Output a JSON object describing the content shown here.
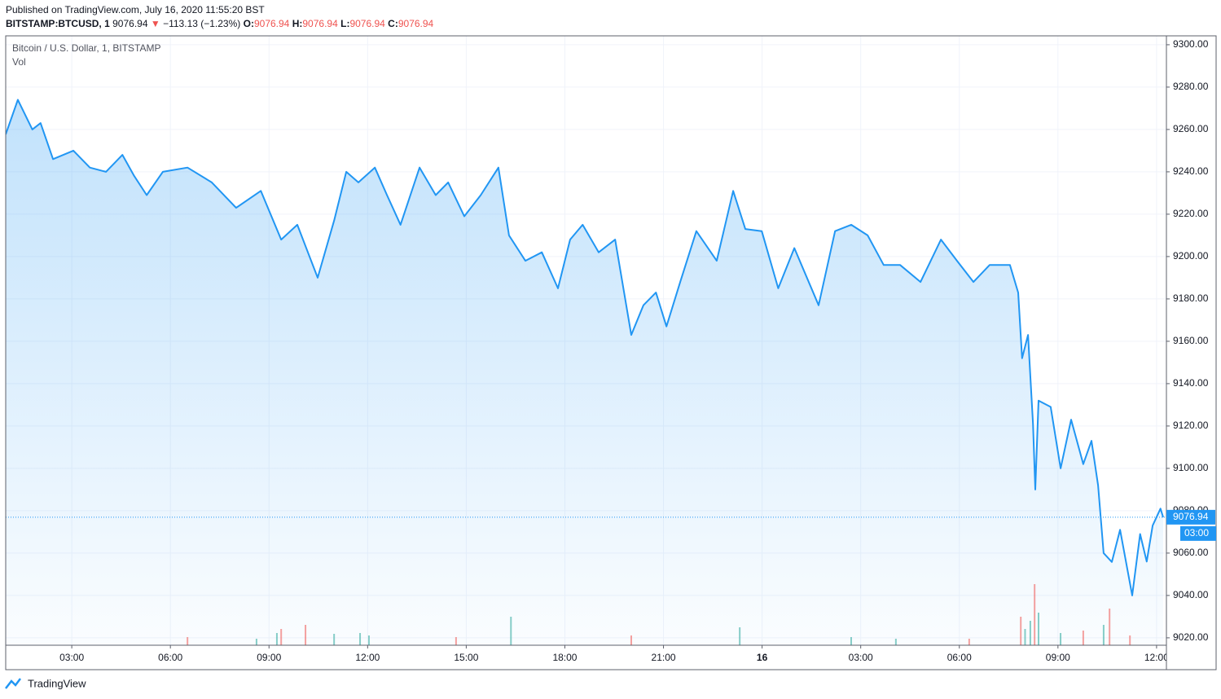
{
  "published": "Published on TradingView.com, July 16, 2020 11:55:20 BST",
  "symbol": "BITSTAMP:BTCUSD, 1",
  "change": "−113.13 (−1.23%)",
  "ohlc": {
    "open_label": "O:",
    "open": 9076.94,
    "high_label": "H:",
    "high": 9076.94,
    "low_label": "L:",
    "low": 9076.94,
    "close_label": "C:",
    "close": 9076.94
  },
  "footer": "TradingView",
  "chart_data": {
    "type": "area-line",
    "title": "Bitcoin / U.S. Dollar, 1, BITSTAMP",
    "volume_label": "Vol",
    "last": 9076.94,
    "countdown": "03:00",
    "color": "#2196f3",
    "grid": true,
    "xlim": [
      0.99,
      36.3
    ],
    "xticks": [
      {
        "value": 3,
        "label": "03:00"
      },
      {
        "value": 6,
        "label": "06:00"
      },
      {
        "value": 9,
        "label": "09:00"
      },
      {
        "value": 12,
        "label": "12:00"
      },
      {
        "value": 15,
        "label": "15:00"
      },
      {
        "value": 18,
        "label": "18:00"
      },
      {
        "value": 21,
        "label": "21:00"
      },
      {
        "value": 24,
        "label": "16"
      },
      {
        "value": 27,
        "label": "03:00"
      },
      {
        "value": 30,
        "label": "06:00"
      },
      {
        "value": 33,
        "label": "09:00"
      },
      {
        "value": 36,
        "label": "12:00"
      }
    ],
    "ylim": [
      9016.5,
      9304.2
    ],
    "yticks": [
      {
        "value": 9020,
        "label": "9020.00"
      },
      {
        "value": 9040,
        "label": "9040.00"
      },
      {
        "value": 9060,
        "label": "9060.00"
      },
      {
        "value": 9080,
        "label": "9080.00"
      },
      {
        "value": 9100,
        "label": "9100.00"
      },
      {
        "value": 9120,
        "label": "9120.00"
      },
      {
        "value": 9140,
        "label": "9140.00"
      },
      {
        "value": 9160,
        "label": "9160.00"
      },
      {
        "value": 9180,
        "label": "9180.00"
      },
      {
        "value": 9200,
        "label": "9200.00"
      },
      {
        "value": 9220,
        "label": "9220.00"
      },
      {
        "value": 9240,
        "label": "9240.00"
      },
      {
        "value": 9260,
        "label": "9260.00"
      },
      {
        "value": 9280,
        "label": "9280.00"
      },
      {
        "value": 9300,
        "label": "9300.00"
      }
    ],
    "x": [
      0.99,
      1.36,
      1.8,
      2.05,
      2.43,
      3.05,
      3.55,
      4.04,
      4.54,
      4.9,
      5.28,
      5.77,
      6.52,
      7.26,
      8.0,
      8.75,
      9.37,
      9.86,
      10.48,
      10.98,
      11.35,
      11.72,
      12.22,
      12.59,
      13.0,
      13.58,
      14.07,
      14.45,
      14.94,
      15.44,
      15.98,
      16.3,
      16.8,
      17.3,
      17.79,
      18.16,
      18.54,
      19.03,
      19.53,
      20.02,
      20.39,
      20.77,
      21.09,
      21.51,
      22.0,
      22.62,
      23.12,
      23.49,
      23.99,
      24.49,
      24.98,
      25.72,
      26.22,
      26.71,
      27.21,
      27.7,
      28.2,
      28.82,
      29.44,
      29.93,
      30.43,
      30.92,
      31.54,
      31.79,
      31.91,
      32.09,
      32.24,
      32.31,
      32.41,
      32.78,
      33.08,
      33.4,
      33.77,
      34.02,
      34.22,
      34.39,
      34.64,
      34.89,
      35.26,
      35.5,
      35.7,
      35.88,
      36.12,
      36.2
    ],
    "values": [
      9257.7,
      9274,
      9260,
      9263,
      9246,
      9250,
      9242,
      9240,
      9248,
      9238,
      9229,
      9240,
      9242,
      9235,
      9223,
      9231,
      9208,
      9215,
      9190,
      9217,
      9240,
      9235,
      9242,
      9229,
      9215,
      9242,
      9229,
      9235,
      9219,
      9229,
      9242,
      9210,
      9198,
      9202,
      9185,
      9208,
      9215,
      9202,
      9208,
      9163,
      9177,
      9183,
      9167,
      9188,
      9212,
      9198,
      9231,
      9213,
      9212,
      9185,
      9204,
      9177,
      9212,
      9215,
      9210,
      9196,
      9196,
      9188,
      9208,
      9198,
      9188,
      9196,
      9196,
      9183,
      9152,
      9163,
      9121,
      9090,
      9132,
      9129,
      9100,
      9123,
      9102,
      9113,
      9092,
      9060,
      9055.8,
      9071,
      9040,
      9069,
      9056,
      9073,
      9081,
      9076.94
    ],
    "volume": {
      "x": [
        32.29,
        32.16,
        31.87,
        32.0,
        16.36,
        9.37,
        10.11,
        23.32,
        34.57,
        33.08,
        33.77,
        34.39,
        35.19,
        11.77,
        12.04,
        20.02,
        6.52,
        10.98,
        8.62,
        14.69,
        26.71,
        9.24,
        32.41,
        30.3,
        28.07
      ],
      "values": [
        75,
        30,
        35,
        20,
        35,
        20,
        25,
        22,
        45,
        15,
        18,
        25,
        12,
        15,
        12,
        12,
        10,
        14,
        8,
        10,
        10,
        15,
        40,
        8,
        8
      ],
      "colors": [
        "#ef5350",
        "#26a69a",
        "#ef5350",
        "#26a69a",
        "#26a69a",
        "#ef5350",
        "#ef5350",
        "#26a69a",
        "#ef5350",
        "#26a69a",
        "#ef5350",
        "#26a69a",
        "#ef5350",
        "#26a69a",
        "#26a69a",
        "#ef5350",
        "#ef5350",
        "#26a69a",
        "#26a69a",
        "#ef5350",
        "#26a69a",
        "#26a69a",
        "#26a69a",
        "#ef5350",
        "#26a69a"
      ]
    }
  }
}
